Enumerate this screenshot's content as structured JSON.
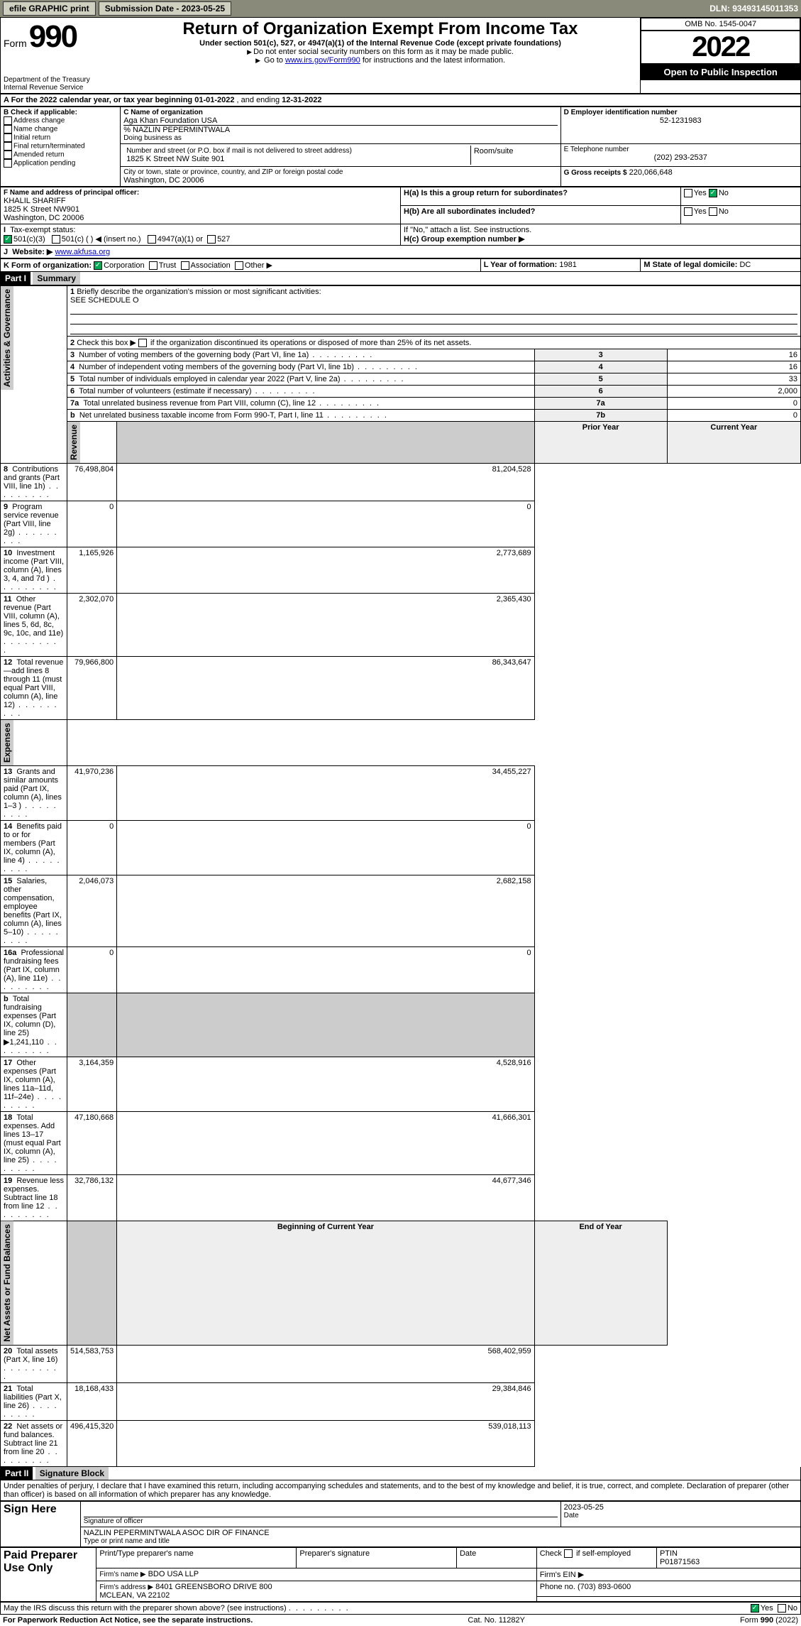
{
  "topbar": {
    "efile_label": "efile GRAPHIC print",
    "submission_label": "Submission Date - 2023-05-25",
    "dln": "DLN: 93493145011353"
  },
  "header": {
    "form_prefix": "Form",
    "form_no": "990",
    "title": "Return of Organization Exempt From Income Tax",
    "subtitle": "Under section 501(c), 527, or 4947(a)(1) of the Internal Revenue Code (except private foundations)",
    "instr1": "Do not enter social security numbers on this form as it may be made public.",
    "instr2_pre": "Go to ",
    "instr2_link": "www.irs.gov/Form990",
    "instr2_post": " for instructions and the latest information.",
    "dept": "Department of the Treasury",
    "irs": "Internal Revenue Service",
    "omb": "OMB No. 1545-0047",
    "year": "2022",
    "open": "Open to Public Inspection"
  },
  "period": {
    "label_a": "A For the 2022 calendar year, or tax year beginning ",
    "begin": "01-01-2022",
    "mid": " , and ending ",
    "end": "12-31-2022"
  },
  "boxB": {
    "label": "B Check if applicable:",
    "addr_change": "Address change",
    "name_change": "Name change",
    "initial": "Initial return",
    "final": "Final return/terminated",
    "amended": "Amended return",
    "pending": "Application pending"
  },
  "boxC": {
    "label": "C Name of organization",
    "org": "Aga Khan Foundation USA",
    "pct_line": "% NAZLIN PEPERMINTWALA",
    "dba_label": "Doing business as",
    "street_label": "Number and street (or P.O. box if mail is not delivered to street address)",
    "street": "1825 K Street NW Suite 901",
    "room_label": "Room/suite",
    "city_label": "City or town, state or province, country, and ZIP or foreign postal code",
    "city": "Washington, DC  20006"
  },
  "boxD": {
    "label": "D Employer identification number",
    "value": "52-1231983"
  },
  "boxE": {
    "label": "E Telephone number",
    "value": "(202) 293-2537"
  },
  "boxG": {
    "label": "G Gross receipts $",
    "value": "220,066,648"
  },
  "boxF": {
    "label": "F Name and address of principal officer:",
    "name": "KHALIL SHARIFF",
    "addr1": "1825 K Street NW901",
    "addr2": "Washington, DC  20006"
  },
  "boxH": {
    "a_label": "H(a)  Is this a group return for subordinates?",
    "b_label": "H(b)  Are all subordinates included?",
    "attach": "If \"No,\" attach a list. See instructions.",
    "c_label": "H(c)  Group exemption number ▶",
    "yes": "Yes",
    "no": "No"
  },
  "taxexempt": {
    "label": "Tax-exempt status:",
    "c3": "501(c)(3)",
    "c_blank": "501(c) (   ) ◀ (insert no.)",
    "s4947": "4947(a)(1) or",
    "s527": "527"
  },
  "boxJ": {
    "label": "Website: ▶",
    "value": "www.akfusa.org"
  },
  "boxK": {
    "label": "K Form of organization:",
    "corp": "Corporation",
    "trust": "Trust",
    "assoc": "Association",
    "other": "Other ▶"
  },
  "boxL": {
    "label": "L Year of formation:",
    "value": "1981"
  },
  "boxM": {
    "label": "M State of legal domicile:",
    "value": "DC"
  },
  "part1": {
    "hdr": "Part I",
    "title": "Summary",
    "l1_label": "Briefly describe the organization's mission or most significant activities:",
    "l1_value": "SEE SCHEDULE O",
    "l2_label": "Check this box ▶",
    "l2_text": "if the organization discontinued its operations or disposed of more than 25% of its net assets.",
    "section_ag": "Activities & Governance",
    "section_rev": "Revenue",
    "section_exp": "Expenses",
    "section_na": "Net Assets or Fund Balances",
    "col_prior": "Prior Year",
    "col_current": "Current Year",
    "col_boy": "Beginning of Current Year",
    "col_eoy": "End of Year",
    "rows_ag": [
      {
        "n": "3",
        "t": "Number of voting members of the governing body (Part VI, line 1a)",
        "box": "3",
        "v": "16"
      },
      {
        "n": "4",
        "t": "Number of independent voting members of the governing body (Part VI, line 1b)",
        "box": "4",
        "v": "16"
      },
      {
        "n": "5",
        "t": "Total number of individuals employed in calendar year 2022 (Part V, line 2a)",
        "box": "5",
        "v": "33"
      },
      {
        "n": "6",
        "t": "Total number of volunteers (estimate if necessary)",
        "box": "6",
        "v": "2,000"
      },
      {
        "n": "7a",
        "t": "Total unrelated business revenue from Part VIII, column (C), line 12",
        "box": "7a",
        "v": "0"
      },
      {
        "n": "b",
        "t": "Net unrelated business taxable income from Form 990-T, Part I, line 11",
        "box": "7b",
        "v": "0"
      }
    ],
    "rows_rev": [
      {
        "n": "8",
        "t": "Contributions and grants (Part VIII, line 1h)",
        "p": "76,498,804",
        "c": "81,204,528"
      },
      {
        "n": "9",
        "t": "Program service revenue (Part VIII, line 2g)",
        "p": "0",
        "c": "0"
      },
      {
        "n": "10",
        "t": "Investment income (Part VIII, column (A), lines 3, 4, and 7d )",
        "p": "1,165,926",
        "c": "2,773,689"
      },
      {
        "n": "11",
        "t": "Other revenue (Part VIII, column (A), lines 5, 6d, 8c, 9c, 10c, and 11e)",
        "p": "2,302,070",
        "c": "2,365,430"
      },
      {
        "n": "12",
        "t": "Total revenue—add lines 8 through 11 (must equal Part VIII, column (A), line 12)",
        "p": "79,966,800",
        "c": "86,343,647"
      }
    ],
    "rows_exp": [
      {
        "n": "13",
        "t": "Grants and similar amounts paid (Part IX, column (A), lines 1–3 )",
        "p": "41,970,236",
        "c": "34,455,227"
      },
      {
        "n": "14",
        "t": "Benefits paid to or for members (Part IX, column (A), line 4)",
        "p": "0",
        "c": "0"
      },
      {
        "n": "15",
        "t": "Salaries, other compensation, employee benefits (Part IX, column (A), lines 5–10)",
        "p": "2,046,073",
        "c": "2,682,158"
      },
      {
        "n": "16a",
        "t": "Professional fundraising fees (Part IX, column (A), line 11e)",
        "p": "0",
        "c": "0"
      },
      {
        "n": "b",
        "t": "Total fundraising expenses (Part IX, column (D), line 25) ▶1,241,110",
        "p": "",
        "c": ""
      },
      {
        "n": "17",
        "t": "Other expenses (Part IX, column (A), lines 11a–11d, 11f–24e)",
        "p": "3,164,359",
        "c": "4,528,916"
      },
      {
        "n": "18",
        "t": "Total expenses. Add lines 13–17 (must equal Part IX, column (A), line 25)",
        "p": "47,180,668",
        "c": "41,666,301"
      },
      {
        "n": "19",
        "t": "Revenue less expenses. Subtract line 18 from line 12",
        "p": "32,786,132",
        "c": "44,677,346"
      }
    ],
    "rows_na": [
      {
        "n": "20",
        "t": "Total assets (Part X, line 16)",
        "p": "514,583,753",
        "c": "568,402,959"
      },
      {
        "n": "21",
        "t": "Total liabilities (Part X, line 26)",
        "p": "18,168,433",
        "c": "29,384,846"
      },
      {
        "n": "22",
        "t": "Net assets or fund balances. Subtract line 21 from line 20",
        "p": "496,415,320",
        "c": "539,018,113"
      }
    ]
  },
  "part2": {
    "hdr": "Part II",
    "title": "Signature Block",
    "decl": "Under penalties of perjury, I declare that I have examined this return, including accompanying schedules and statements, and to the best of my knowledge and belief, it is true, correct, and complete. Declaration of preparer (other than officer) is based on all information of which preparer has any knowledge.",
    "sign_here": "Sign Here",
    "sig_officer": "Signature of officer",
    "sig_date": "2023-05-25",
    "date_label": "Date",
    "officer_name": "NAZLIN PEPERMINTWALA  ASOC DIR OF FINANCE",
    "name_title_label": "Type or print name and title"
  },
  "preparer": {
    "label": "Paid Preparer Use Only",
    "col_name": "Print/Type preparer's name",
    "col_sig": "Preparer's signature",
    "col_date": "Date",
    "col_check_label": "Check",
    "col_check_text": "if self-employed",
    "col_ptin": "PTIN",
    "ptin": "P01871563",
    "firm_name_label": "Firm's name      ▶",
    "firm_name": "BDO USA LLP",
    "firm_ein_label": "Firm's EIN ▶",
    "firm_addr_label": "Firm's address ▶",
    "firm_addr1": "8401 GREENSBORO DRIVE 800",
    "firm_addr2": "MCLEAN, VA  22102",
    "phone_label": "Phone no.",
    "phone": "(703) 893-0600"
  },
  "footer": {
    "discuss": "May the IRS discuss this return with the preparer shown above? (see instructions)",
    "yes": "Yes",
    "no": "No",
    "pra": "For Paperwork Reduction Act Notice, see the separate instructions.",
    "catno": "Cat. No. 11282Y",
    "formno": "Form 990 (2022)"
  }
}
